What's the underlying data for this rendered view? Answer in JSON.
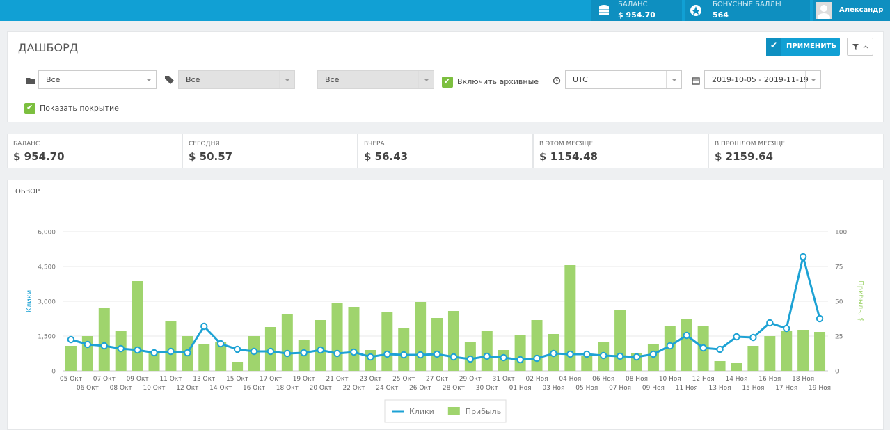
{
  "header": {
    "balance_label": "БАЛАНС",
    "balance_value": "$ 954.70",
    "bonus_label": "БОНУСНЫЕ БАЛЛЫ",
    "bonus_value": "564",
    "user": "Александр"
  },
  "dashboard": {
    "title": "ДАШБОРД",
    "apply_button": "ПРИМЕНИТЬ"
  },
  "filters": {
    "select1": "Все",
    "select2": "Все",
    "select3": "Все",
    "archive_label": "Включить архивные",
    "timezone": "UTC",
    "date_range": "2019-10-05 - 2019-11-19",
    "coverage_label": "Показать покрытие"
  },
  "stats": [
    {
      "label": "БАЛАНС",
      "value": "$ 954.70"
    },
    {
      "label": "СЕГОДНЯ",
      "value": "$ 50.57"
    },
    {
      "label": "ВЧЕРА",
      "value": "$ 56.43"
    },
    {
      "label": "В ЭТОМ МЕСЯЦЕ",
      "value": "$ 1154.48"
    },
    {
      "label": "В ПРОШЛОМ МЕСЯЦЕ",
      "value": "$ 2159.64"
    }
  ],
  "overview": {
    "title": "ОБЗОР"
  },
  "chart_data": {
    "type": "combo",
    "ylabel": "Клики",
    "y2label": "Прибыль, $",
    "x": [
      "05 Окт",
      "06 Окт",
      "07 Окт",
      "08 Окт",
      "09 Окт",
      "10 Окт",
      "11 Окт",
      "12 Окт",
      "13 Окт",
      "14 Окт",
      "15 Окт",
      "16 Окт",
      "17 Окт",
      "18 Окт",
      "19 Окт",
      "20 Окт",
      "21 Окт",
      "22 Окт",
      "23 Окт",
      "24 Окт",
      "25 Окт",
      "26 Окт",
      "27 Окт",
      "28 Окт",
      "29 Окт",
      "30 Окт",
      "31 Окт",
      "01 Ноя",
      "02 Ноя",
      "03 Ноя",
      "04 Ноя",
      "05 Ноя",
      "06 Ноя",
      "07 Ноя",
      "08 Ноя",
      "09 Ноя",
      "10 Ноя",
      "11 Ноя",
      "12 Ноя",
      "13 Ноя",
      "14 Ноя",
      "15 Ноя",
      "16 Ноя",
      "17 Ноя",
      "18 Ноя",
      "19 Ноя"
    ],
    "series": [
      {
        "name": "Клики",
        "type": "line",
        "color": "#1da2d4",
        "values": [
          1350,
          1140,
          1080,
          960,
          900,
          780,
          840,
          780,
          1920,
          1170,
          930,
          840,
          840,
          750,
          780,
          900,
          750,
          810,
          600,
          720,
          690,
          690,
          720,
          600,
          510,
          630,
          570,
          480,
          540,
          750,
          720,
          720,
          660,
          630,
          600,
          720,
          1080,
          1530,
          990,
          930,
          1470,
          1440,
          2070,
          1830,
          4920,
          2250
        ]
      },
      {
        "name": "Прибыль",
        "type": "bar",
        "axis": "y2",
        "color": "#9fd46d",
        "values": [
          18,
          25,
          45,
          28.5,
          64.5,
          12.5,
          35.5,
          25,
          19.5,
          21,
          6.5,
          25,
          31.5,
          41,
          22.5,
          36.5,
          48.5,
          46,
          15,
          42,
          31,
          49.5,
          38,
          43,
          20.5,
          29,
          15,
          26,
          36.5,
          26.5,
          76,
          10.5,
          20.5,
          44,
          13,
          19,
          32.5,
          37.5,
          32,
          7,
          6,
          18,
          25,
          29,
          29.5,
          28
        ]
      }
    ],
    "ylim": [
      0,
      6000
    ],
    "yticks": [
      0,
      {
        "value": 1500,
        "label": "1,500"
      },
      {
        "value": 3000,
        "label": "3,000"
      },
      {
        "value": 4500,
        "label": "4,500"
      },
      {
        "value": 6000,
        "label": "6,000"
      }
    ],
    "y2lim": [
      0,
      100
    ],
    "y2ticks": [
      0,
      25,
      50,
      75,
      100
    ],
    "grid": true
  }
}
